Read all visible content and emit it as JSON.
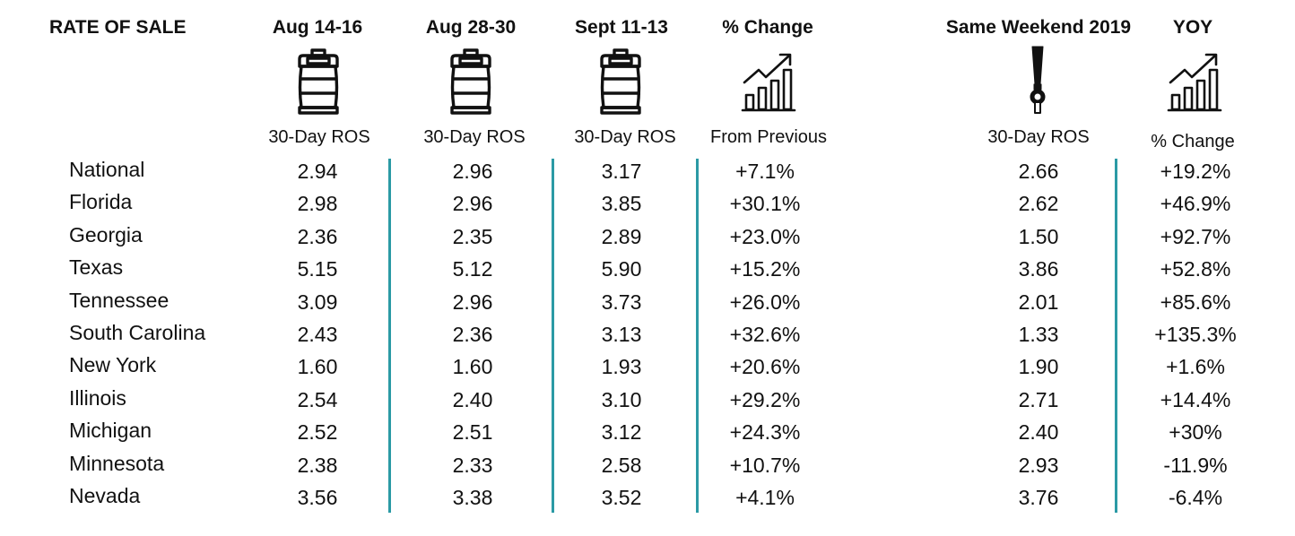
{
  "chart_data": {
    "type": "table",
    "title": "RATE OF SALE",
    "columns": [
      {
        "header": "Aug 14-16",
        "subheader": "30-Day ROS",
        "icon": "keg-icon"
      },
      {
        "header": "Aug 28-30",
        "subheader": "30-Day ROS",
        "icon": "keg-icon"
      },
      {
        "header": "Sept 11-13",
        "subheader": "30-Day ROS",
        "icon": "keg-icon"
      },
      {
        "header": "% Change",
        "subheader": "From Previous",
        "icon": "growth-chart-icon"
      },
      {
        "header": "Same Weekend 2019",
        "subheader": "30-Day ROS",
        "icon": "beer-tap-icon"
      },
      {
        "header": "YOY",
        "subheader": "% Change",
        "icon": "growth-chart-icon"
      }
    ],
    "rows": [
      {
        "state": "National",
        "values": [
          "2.94",
          "2.96",
          "3.17",
          "+7.1%",
          "2.66",
          "+19.2%"
        ]
      },
      {
        "state": "Florida",
        "values": [
          "2.98",
          "2.96",
          "3.85",
          "+30.1%",
          "2.62",
          "+46.9%"
        ]
      },
      {
        "state": "Georgia",
        "values": [
          "2.36",
          "2.35",
          "2.89",
          "+23.0%",
          "1.50",
          "+92.7%"
        ]
      },
      {
        "state": "Texas",
        "values": [
          "5.15",
          "5.12",
          "5.90",
          "+15.2%",
          "3.86",
          "+52.8%"
        ]
      },
      {
        "state": "Tennessee",
        "values": [
          "3.09",
          "2.96",
          "3.73",
          "+26.0%",
          "2.01",
          "+85.6%"
        ]
      },
      {
        "state": "South Carolina",
        "values": [
          "2.43",
          "2.36",
          "3.13",
          "+32.6%",
          "1.33",
          "+135.3%"
        ]
      },
      {
        "state": "New York",
        "values": [
          "1.60",
          "1.60",
          "1.93",
          "+20.6%",
          "1.90",
          "+1.6%"
        ]
      },
      {
        "state": "Illinois",
        "values": [
          "2.54",
          "2.40",
          "3.10",
          "+29.2%",
          "2.71",
          "+14.4%"
        ]
      },
      {
        "state": "Michigan",
        "values": [
          "2.52",
          "2.51",
          "3.12",
          "+24.3%",
          "2.40",
          "+30%"
        ]
      },
      {
        "state": "Minnesota",
        "values": [
          "2.38",
          "2.33",
          "2.58",
          "+10.7%",
          "2.93",
          "-11.9%"
        ]
      },
      {
        "state": "Nevada",
        "values": [
          "3.56",
          "3.38",
          "3.52",
          "+4.1%",
          "3.76",
          "-6.4%"
        ]
      }
    ],
    "divider_color": "#2b9aa5"
  }
}
